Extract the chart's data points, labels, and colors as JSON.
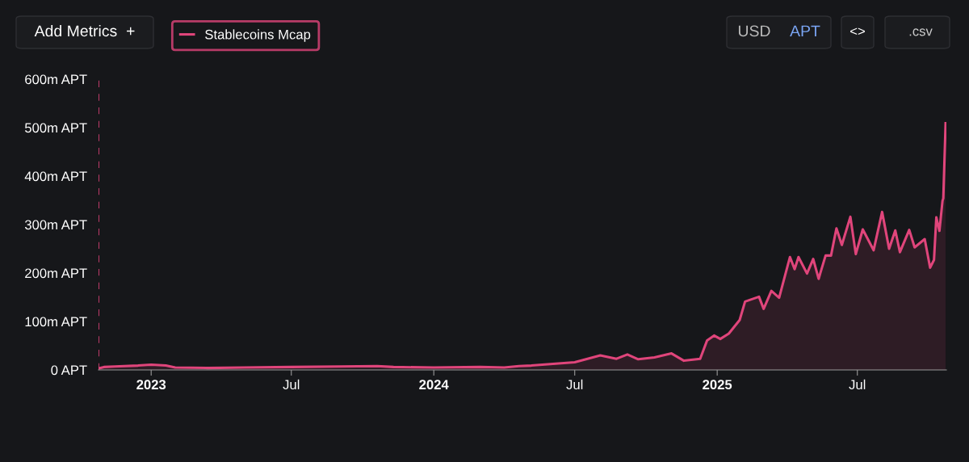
{
  "chart_data": {
    "type": "area",
    "x": [
      "2022-10-25",
      "2022-11-01",
      "2022-11-15",
      "2022-12-15",
      "2023-01-01",
      "2023-01-20",
      "2023-02-01",
      "2023-03-15",
      "2023-05-01",
      "2023-07-01",
      "2023-09-01",
      "2023-10-20",
      "2023-11-10",
      "2024-01-01",
      "2024-03-01",
      "2024-04-01",
      "2024-04-20",
      "2024-05-06",
      "2024-07-01",
      "2024-08-03",
      "2024-08-24",
      "2024-09-07",
      "2024-09-21",
      "2024-10-12",
      "2024-11-03",
      "2024-11-19",
      "2024-12-10",
      "2024-12-19",
      "2024-12-28",
      "2025-01-05",
      "2025-01-16",
      "2025-01-30",
      "2025-02-06",
      "2025-02-24",
      "2025-03-02",
      "2025-03-12",
      "2025-03-22",
      "2025-04-05",
      "2025-04-11",
      "2025-04-16",
      "2025-04-27",
      "2025-05-05",
      "2025-05-12",
      "2025-05-21",
      "2025-05-28",
      "2025-06-04",
      "2025-06-11",
      "2025-06-22",
      "2025-06-29",
      "2025-07-08",
      "2025-07-22",
      "2025-08-02",
      "2025-08-11",
      "2025-08-19",
      "2025-08-25",
      "2025-09-06",
      "2025-09-13",
      "2025-09-26",
      "2025-10-03",
      "2025-10-08",
      "2025-10-11",
      "2025-10-15",
      "2025-10-19",
      "2025-10-20",
      "2025-10-23"
    ],
    "series": [
      {
        "name": "Stablecoins Mcap",
        "color": "#e0457b",
        "values": [
          3,
          6,
          7,
          9,
          11,
          9,
          5,
          4,
          5,
          6,
          7,
          8,
          6,
          5,
          6,
          5,
          8,
          9,
          16,
          30,
          23,
          32,
          22,
          26,
          34,
          19,
          23,
          61,
          71,
          64,
          75,
          103,
          141,
          151,
          126,
          163,
          149,
          233,
          208,
          233,
          199,
          229,
          188,
          236,
          236,
          292,
          258,
          316,
          239,
          290,
          247,
          326,
          250,
          288,
          243,
          289,
          253,
          270,
          211,
          227,
          315,
          287,
          349,
          354,
          509
        ]
      }
    ],
    "xlim": [
      "2022-10-25",
      "2025-10-24"
    ],
    "xticks": [
      {
        "value": "2023-01-01",
        "label": "2023"
      },
      {
        "value": "2023-07-01",
        "label": "Jul"
      },
      {
        "value": "2024-01-01",
        "label": "2024"
      },
      {
        "value": "2024-07-01",
        "label": "Jul"
      },
      {
        "value": "2025-01-01",
        "label": "2025"
      },
      {
        "value": "2025-07-01",
        "label": "Jul"
      }
    ],
    "ylim": [
      0,
      600
    ],
    "yticks": [
      {
        "value": 0,
        "label": "0 APT"
      },
      {
        "value": 100,
        "label": "100m APT"
      },
      {
        "value": 200,
        "label": "200m APT"
      },
      {
        "value": 300,
        "label": "300m APT"
      },
      {
        "value": 400,
        "label": "400m APT"
      },
      {
        "value": 500,
        "label": "500m APT"
      },
      {
        "value": 600,
        "label": "600m APT"
      }
    ],
    "ref_lines": [
      {
        "axis": "x",
        "value": "2022-10-25",
        "color": "#e0457b",
        "line_style": "dashed"
      }
    ],
    "grid": false,
    "legend": "top left",
    "annotations": [
      "Add Metrics  +",
      "USD",
      "APT",
      "<>",
      ".csv"
    ]
  }
}
